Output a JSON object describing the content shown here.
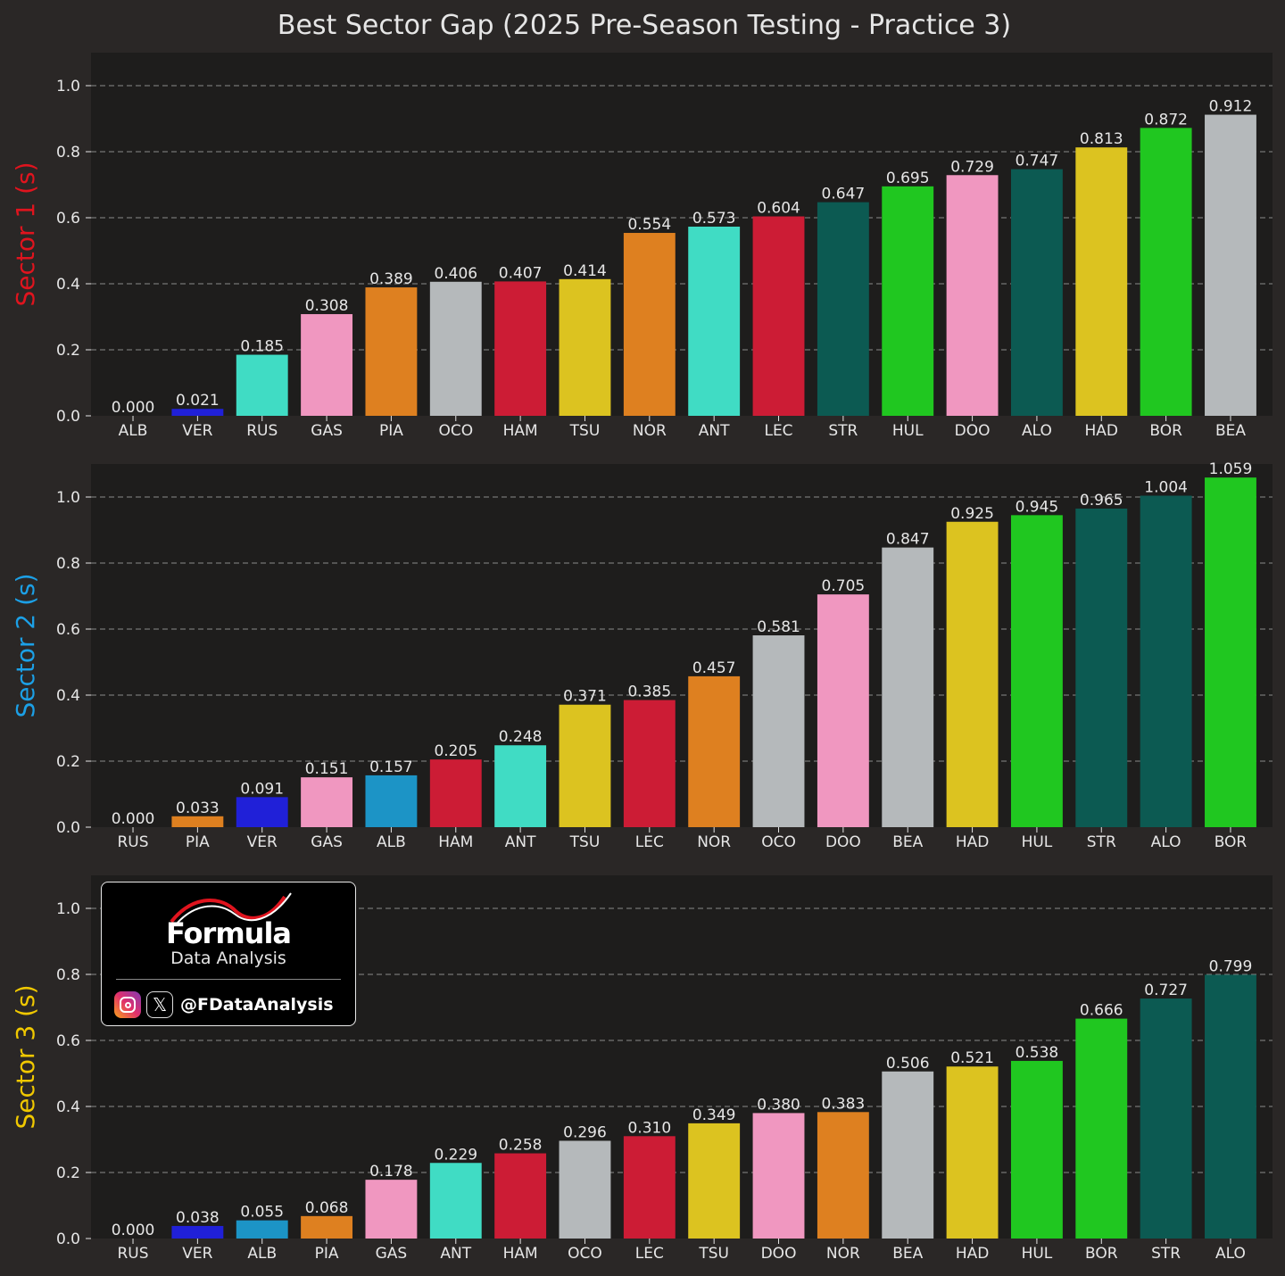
{
  "title": "Best Sector Gap (2025 Pre-Season Testing - Practice 3)",
  "colors": {
    "figure_bg": "#2a2726",
    "axes_bg": "#1e1d1c",
    "text": "#e6e6e6",
    "grid": "#8a8a8a",
    "teams": {
      "ALB": "#1c94c6",
      "VER": "#2020d8",
      "RUS": "#40dcc4",
      "GAS": "#f097c0",
      "PIA": "#de8020",
      "OCO": "#b5b9bb",
      "HAM": "#cc1c35",
      "TSU": "#dcc320",
      "NOR": "#de8020",
      "ANT": "#40dcc4",
      "LEC": "#cc1c35",
      "STR": "#0c5a52",
      "HUL": "#20c720",
      "DOO": "#f097c0",
      "ALO": "#0c5a52",
      "HAD": "#dcc320",
      "BOR": "#20c720",
      "BEA": "#b5b9bb"
    }
  },
  "chart_data": [
    {
      "type": "bar",
      "ylabel": "Sector 1 (s)",
      "ylabel_color": "#e0141e",
      "ylim": [
        0,
        1.1
      ],
      "yticks": [
        "0.0",
        "0.2",
        "0.4",
        "0.6",
        "0.8",
        "1.0"
      ],
      "grid": "horizontal dashed",
      "categories": [
        "ALB",
        "VER",
        "RUS",
        "GAS",
        "PIA",
        "OCO",
        "HAM",
        "TSU",
        "NOR",
        "ANT",
        "LEC",
        "STR",
        "HUL",
        "DOO",
        "ALO",
        "HAD",
        "BOR",
        "BEA"
      ],
      "values": [
        0.0,
        0.021,
        0.185,
        0.308,
        0.389,
        0.406,
        0.407,
        0.414,
        0.554,
        0.573,
        0.604,
        0.647,
        0.695,
        0.729,
        0.747,
        0.813,
        0.872,
        0.912
      ],
      "labels": [
        "0.000",
        "0.021",
        "0.185",
        "0.308",
        "0.389",
        "0.406",
        "0.407",
        "0.414",
        "0.554",
        "0.573",
        "0.604",
        "0.647",
        "0.695",
        "0.729",
        "0.747",
        "0.813",
        "0.872",
        "0.912"
      ]
    },
    {
      "type": "bar",
      "ylabel": "Sector 2 (s)",
      "ylabel_color": "#1ca0e6",
      "ylim": [
        0,
        1.1
      ],
      "yticks": [
        "0.0",
        "0.2",
        "0.4",
        "0.6",
        "0.8",
        "1.0"
      ],
      "grid": "horizontal dashed",
      "categories": [
        "RUS",
        "PIA",
        "VER",
        "GAS",
        "ALB",
        "HAM",
        "ANT",
        "TSU",
        "LEC",
        "NOR",
        "OCO",
        "DOO",
        "BEA",
        "HAD",
        "HUL",
        "STR",
        "ALO",
        "BOR"
      ],
      "values": [
        0.0,
        0.033,
        0.091,
        0.151,
        0.157,
        0.205,
        0.248,
        0.371,
        0.385,
        0.457,
        0.581,
        0.705,
        0.847,
        0.925,
        0.945,
        0.965,
        1.004,
        1.059
      ],
      "labels": [
        "0.000",
        "0.033",
        "0.091",
        "0.151",
        "0.157",
        "0.205",
        "0.248",
        "0.371",
        "0.385",
        "0.457",
        "0.581",
        "0.705",
        "0.847",
        "0.925",
        "0.945",
        "0.965",
        "1.004",
        "1.059"
      ]
    },
    {
      "type": "bar",
      "ylabel": "Sector 3 (s)",
      "ylabel_color": "#f0c800",
      "ylim": [
        0,
        1.1
      ],
      "yticks": [
        "0.0",
        "0.2",
        "0.4",
        "0.6",
        "0.8",
        "1.0"
      ],
      "grid": "horizontal dashed",
      "categories": [
        "RUS",
        "VER",
        "ALB",
        "PIA",
        "GAS",
        "ANT",
        "HAM",
        "OCO",
        "LEC",
        "TSU",
        "DOO",
        "NOR",
        "BEA",
        "HAD",
        "HUL",
        "BOR",
        "STR",
        "ALO"
      ],
      "values": [
        0.0,
        0.038,
        0.055,
        0.068,
        0.178,
        0.229,
        0.258,
        0.296,
        0.31,
        0.349,
        0.38,
        0.383,
        0.506,
        0.521,
        0.538,
        0.666,
        0.727,
        0.799
      ],
      "labels": [
        "0.000",
        "0.038",
        "0.055",
        "0.068",
        "0.178",
        "0.229",
        "0.258",
        "0.296",
        "0.310",
        "0.349",
        "0.380",
        "0.383",
        "0.506",
        "0.521",
        "0.538",
        "0.666",
        "0.727",
        "0.799"
      ]
    }
  ],
  "logo": {
    "brand": "Formula",
    "tagline": "Data Analysis",
    "handle": "@FDataAnalysis",
    "x_glyph": "𝕏"
  }
}
